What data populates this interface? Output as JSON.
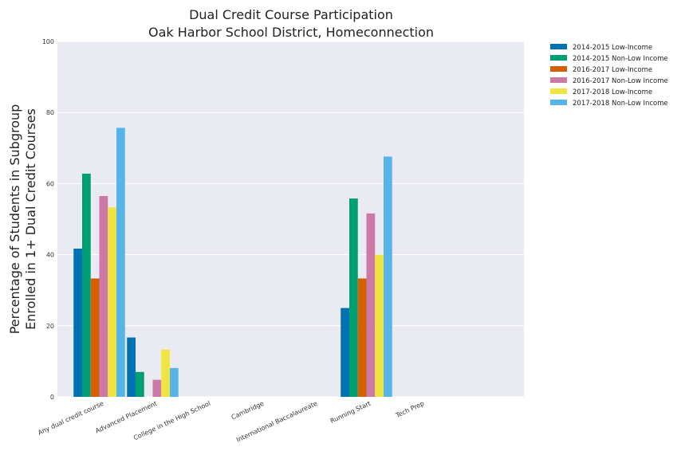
{
  "chart_data": {
    "type": "bar",
    "title": [
      "Dual Credit Course Participation",
      "Oak Harbor School District, Homeconnection"
    ],
    "xlabel": "",
    "ylabel": [
      "Percentage of Students in Subgroup",
      "Enrolled in 1+ Dual Credit Courses"
    ],
    "ylim": [
      0,
      100
    ],
    "yticks": [
      0,
      20,
      40,
      60,
      80,
      100
    ],
    "grid": true,
    "legend_position": "outside-top-right",
    "categories": [
      "Any dual credit course",
      "Advanced Placement",
      "College in the High School",
      "Cambridge",
      "International Baccalaureate",
      "Running Start",
      "Tech Prep"
    ],
    "series": [
      {
        "name": "2014-2015 Low-Income",
        "color": "#0072B2",
        "values": [
          41.7,
          16.7,
          0,
          0,
          0,
          25.0,
          0
        ]
      },
      {
        "name": "2014-2015 Non-Low Income",
        "color": "#009E73",
        "values": [
          62.8,
          7.0,
          0,
          0,
          0,
          55.8,
          0
        ]
      },
      {
        "name": "2016-2017 Low-Income",
        "color": "#D55E00",
        "values": [
          33.3,
          0,
          0,
          0,
          0,
          33.3,
          0
        ]
      },
      {
        "name": "2016-2017 Non-Low Income",
        "color": "#CC79A7",
        "values": [
          56.5,
          4.8,
          0,
          0,
          0,
          51.6,
          0
        ]
      },
      {
        "name": "2017-2018 Low-Income",
        "color": "#F0E442",
        "values": [
          53.3,
          13.3,
          0,
          0,
          0,
          40.0,
          0
        ]
      },
      {
        "name": "2017-2018 Non-Low Income",
        "color": "#56B4E9",
        "values": [
          75.7,
          8.1,
          0,
          0,
          0,
          67.6,
          0
        ]
      }
    ]
  }
}
